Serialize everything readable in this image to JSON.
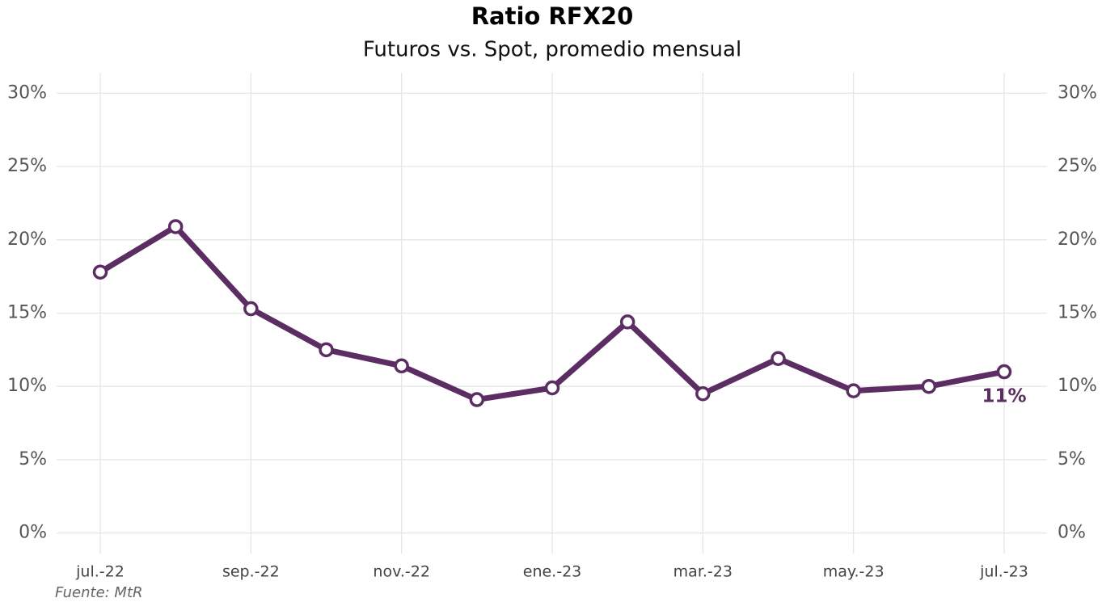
{
  "chart_data": {
    "type": "line",
    "title": "Ratio RFX20",
    "subtitle": "Futuros vs. Spot, promedio mensual",
    "caption": "Fuente: MtR",
    "categories": [
      "jul.-22",
      null,
      "sep.-22",
      null,
      "nov.-22",
      null,
      "ene.-23",
      null,
      "mar.-23",
      null,
      "may.-23",
      null,
      "jul.-23"
    ],
    "series": [
      {
        "name": "Ratio RFX20",
        "color": "#5b2d63",
        "values": [
          17.8,
          20.9,
          15.3,
          12.5,
          11.4,
          9.1,
          9.9,
          14.4,
          9.5,
          11.9,
          9.7,
          10.0,
          11.0
        ],
        "value_labels": [
          null,
          null,
          null,
          null,
          null,
          null,
          null,
          null,
          null,
          null,
          null,
          null,
          "11%"
        ]
      }
    ],
    "ylim": [
      -1.4,
      31.4
    ],
    "yticks": [
      {
        "value": 0,
        "label": "0%"
      },
      {
        "value": 5,
        "label": "5%"
      },
      {
        "value": 10,
        "label": "10%"
      },
      {
        "value": 15,
        "label": "15%"
      },
      {
        "value": 20,
        "label": "20%"
      },
      {
        "value": 25,
        "label": "25%"
      },
      {
        "value": 30,
        "label": "30%"
      }
    ],
    "y2lim": [
      -1.4,
      31.4
    ],
    "y2ticks": [
      {
        "value": 0,
        "label": "0%"
      },
      {
        "value": 5,
        "label": "5%"
      },
      {
        "value": 10,
        "label": "10%"
      },
      {
        "value": 15,
        "label": "15%"
      },
      {
        "value": 20,
        "label": "20%"
      },
      {
        "value": 25,
        "label": "25%"
      },
      {
        "value": 30,
        "label": "30%"
      }
    ],
    "grid": true
  }
}
